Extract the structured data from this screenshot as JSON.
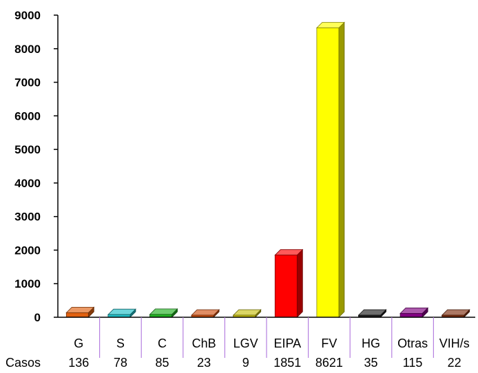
{
  "chart_data": {
    "type": "bar",
    "title": "",
    "xlabel": "",
    "ylabel": "",
    "ylim": [
      0,
      9000
    ],
    "yticks": [
      0,
      1000,
      2000,
      3000,
      4000,
      5000,
      6000,
      7000,
      8000,
      9000
    ],
    "grid": false,
    "legend": "none",
    "categories": [
      "G",
      "S",
      "C",
      "ChB",
      "LGV",
      "EIPA",
      "FV",
      "HG",
      "Otras",
      "VIH/s"
    ],
    "values": [
      136,
      78,
      85,
      23,
      9,
      1851,
      8621,
      35,
      115,
      22
    ],
    "table_row_label": "Casos",
    "table_values": [
      "136",
      "78",
      "85",
      "23",
      "9",
      "1851",
      "8621",
      "35",
      "115",
      "22"
    ],
    "colors": [
      "#E06010",
      "#20C0C8",
      "#20B020",
      "#D05010",
      "#C8C010",
      "#FF0000",
      "#FFFF00",
      "#202020",
      "#800080",
      "#803010"
    ]
  }
}
